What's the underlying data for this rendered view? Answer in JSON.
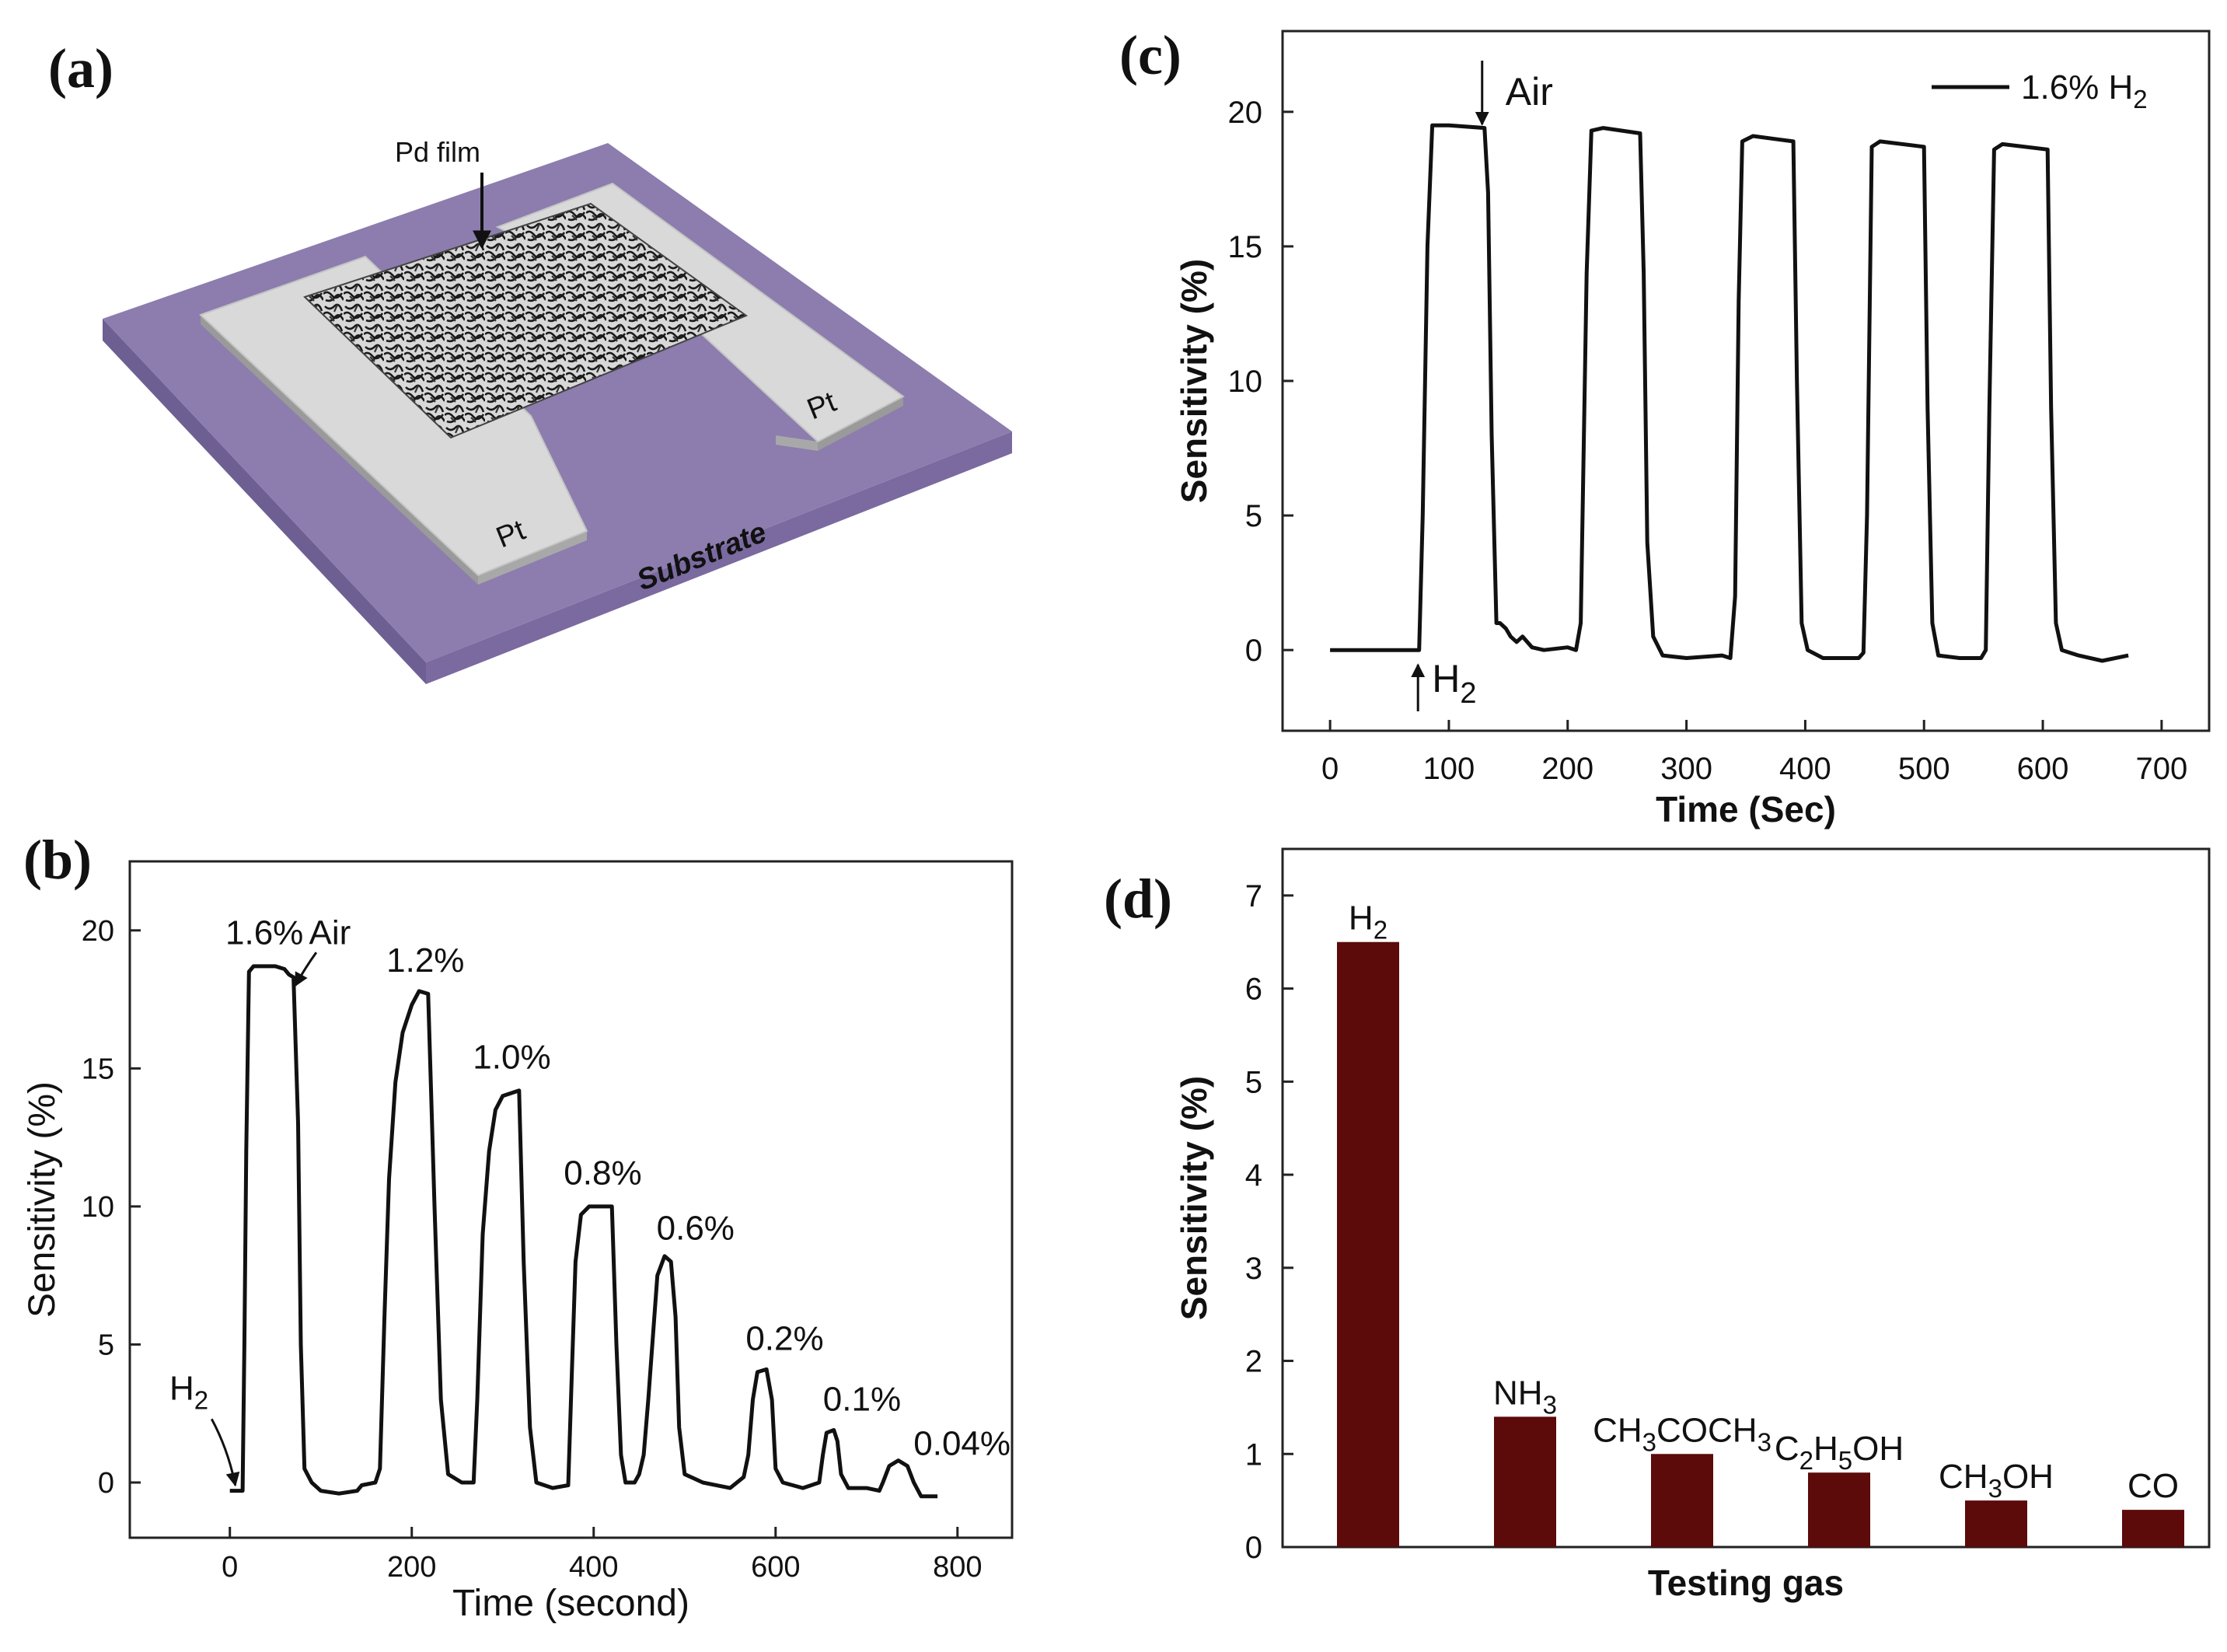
{
  "panels": {
    "a": {
      "label": "(a)",
      "film_label": "Pd film",
      "electrode_left": "Pt",
      "electrode_right": "Pt",
      "substrate_label": "Substrate",
      "colors": {
        "substrate": "#8C7DAE",
        "electrode": "#D9D9D9"
      }
    },
    "b": {
      "label": "(b)"
    },
    "c": {
      "label": "(c)"
    },
    "d": {
      "label": "(d)"
    }
  },
  "chart_data": [
    {
      "id": "b",
      "type": "line",
      "xlabel": "Time (second)",
      "ylabel": "Sensitivity (%)",
      "xlim": [
        -110,
        860
      ],
      "ylim": [
        -2,
        22.5
      ],
      "xticks": [
        0,
        200,
        400,
        600,
        800
      ],
      "yticks": [
        0,
        5,
        10,
        15,
        20
      ],
      "points": [
        [
          0,
          -0.3
        ],
        [
          12,
          -0.3
        ],
        [
          14,
          -0.3
        ],
        [
          16,
          5
        ],
        [
          18,
          12
        ],
        [
          21,
          18.5
        ],
        [
          26,
          18.7
        ],
        [
          50,
          18.7
        ],
        [
          60,
          18.6
        ],
        [
          65,
          18.4
        ],
        [
          70,
          18.3
        ],
        [
          75,
          13
        ],
        [
          78,
          5
        ],
        [
          82,
          0.5
        ],
        [
          90,
          0
        ],
        [
          100,
          -0.3
        ],
        [
          120,
          -0.4
        ],
        [
          140,
          -0.3
        ],
        [
          145,
          -0.1
        ],
        [
          160,
          0
        ],
        [
          165,
          0.5
        ],
        [
          170,
          6
        ],
        [
          175,
          11
        ],
        [
          182,
          14.5
        ],
        [
          190,
          16.3
        ],
        [
          200,
          17.3
        ],
        [
          208,
          17.8
        ],
        [
          218,
          17.7
        ],
        [
          225,
          10
        ],
        [
          232,
          3
        ],
        [
          240,
          0.3
        ],
        [
          255,
          0
        ],
        [
          268,
          0
        ],
        [
          272,
          3
        ],
        [
          278,
          9
        ],
        [
          285,
          12
        ],
        [
          292,
          13.5
        ],
        [
          300,
          14
        ],
        [
          318,
          14.2
        ],
        [
          323,
          8
        ],
        [
          330,
          2
        ],
        [
          337,
          0
        ],
        [
          355,
          -0.2
        ],
        [
          372,
          -0.1
        ],
        [
          376,
          4
        ],
        [
          380,
          8
        ],
        [
          386,
          9.7
        ],
        [
          395,
          10
        ],
        [
          420,
          10
        ],
        [
          425,
          5
        ],
        [
          430,
          1
        ],
        [
          435,
          0
        ],
        [
          445,
          0
        ],
        [
          450,
          0.3
        ],
        [
          455,
          1
        ],
        [
          460,
          3
        ],
        [
          470,
          7.5
        ],
        [
          478,
          8.2
        ],
        [
          485,
          8
        ],
        [
          490,
          6
        ],
        [
          494,
          2
        ],
        [
          500,
          0.3
        ],
        [
          520,
          0
        ],
        [
          550,
          -0.2
        ],
        [
          565,
          0.2
        ],
        [
          570,
          1
        ],
        [
          575,
          3
        ],
        [
          580,
          4
        ],
        [
          590,
          4.1
        ],
        [
          596,
          3
        ],
        [
          600,
          0.5
        ],
        [
          608,
          0
        ],
        [
          630,
          -0.2
        ],
        [
          648,
          0
        ],
        [
          652,
          1
        ],
        [
          656,
          1.8
        ],
        [
          664,
          1.9
        ],
        [
          668,
          1.5
        ],
        [
          672,
          0.3
        ],
        [
          680,
          -0.2
        ],
        [
          700,
          -0.2
        ],
        [
          714,
          -0.3
        ],
        [
          718,
          0
        ],
        [
          725,
          0.6
        ],
        [
          735,
          0.8
        ],
        [
          745,
          0.6
        ],
        [
          752,
          0
        ],
        [
          760,
          -0.5
        ],
        [
          778,
          -0.5
        ]
      ],
      "annotations": [
        {
          "text": "1.6%",
          "x": 38,
          "y": 19.5
        },
        {
          "text": "Air",
          "x": 110,
          "y": 19.5
        },
        {
          "text": "1.2%",
          "x": 215,
          "y": 18.5
        },
        {
          "text": "1.0%",
          "x": 310,
          "y": 15.0
        },
        {
          "text": "0.8%",
          "x": 410,
          "y": 10.8
        },
        {
          "text": "0.6%",
          "x": 512,
          "y": 8.8
        },
        {
          "text": "0.2%",
          "x": 610,
          "y": 4.8
        },
        {
          "text": "0.1%",
          "x": 695,
          "y": 2.6
        },
        {
          "text": "0.04%",
          "x": 805,
          "y": 1.0
        }
      ],
      "h2_marker": {
        "text": "H",
        "sub": "2"
      }
    },
    {
      "id": "c",
      "type": "line",
      "xlabel": "Time (Sec)",
      "ylabel": "Sensitivity (%)",
      "xlim": [
        -40,
        740
      ],
      "ylim": [
        -3,
        23
      ],
      "xticks": [
        0,
        100,
        200,
        300,
        400,
        500,
        600,
        700
      ],
      "yticks": [
        0,
        5,
        10,
        15,
        20
      ],
      "legend": {
        "text": "1.6% H",
        "sub": "2",
        "position": "top-right"
      },
      "points": [
        [
          0,
          0
        ],
        [
          70,
          0
        ],
        [
          75,
          0
        ],
        [
          78,
          5
        ],
        [
          82,
          15
        ],
        [
          86,
          19.5
        ],
        [
          100,
          19.5
        ],
        [
          130,
          19.4
        ],
        [
          133,
          17
        ],
        [
          136,
          8
        ],
        [
          140,
          1
        ],
        [
          143,
          1
        ],
        [
          148,
          0.8
        ],
        [
          152,
          0.5
        ],
        [
          157,
          0.3
        ],
        [
          162,
          0.5
        ],
        [
          170,
          0.1
        ],
        [
          180,
          0
        ],
        [
          200,
          0.1
        ],
        [
          207,
          0
        ],
        [
          211,
          1
        ],
        [
          216,
          14
        ],
        [
          220,
          19.3
        ],
        [
          230,
          19.4
        ],
        [
          261,
          19.2
        ],
        [
          264,
          14
        ],
        [
          267,
          4
        ],
        [
          272,
          0.5
        ],
        [
          280,
          -0.2
        ],
        [
          300,
          -0.3
        ],
        [
          330,
          -0.2
        ],
        [
          337,
          -0.3
        ],
        [
          341,
          2
        ],
        [
          344,
          13
        ],
        [
          347,
          18.9
        ],
        [
          356,
          19.1
        ],
        [
          390,
          18.9
        ],
        [
          393,
          10
        ],
        [
          397,
          1
        ],
        [
          402,
          0
        ],
        [
          415,
          -0.3
        ],
        [
          445,
          -0.3
        ],
        [
          449,
          -0.1
        ],
        [
          452,
          5
        ],
        [
          456,
          18.7
        ],
        [
          463,
          18.9
        ],
        [
          500,
          18.7
        ],
        [
          503,
          9
        ],
        [
          507,
          1
        ],
        [
          512,
          -0.2
        ],
        [
          530,
          -0.3
        ],
        [
          548,
          -0.3
        ],
        [
          552,
          0
        ],
        [
          555,
          9
        ],
        [
          559,
          18.6
        ],
        [
          566,
          18.8
        ],
        [
          604,
          18.6
        ],
        [
          607,
          9
        ],
        [
          611,
          1
        ],
        [
          616,
          0
        ],
        [
          630,
          -0.2
        ],
        [
          650,
          -0.4
        ],
        [
          672,
          -0.2
        ]
      ],
      "annotations": [
        {
          "type": "arrow_down",
          "text": "Air",
          "x": 128
        },
        {
          "type": "arrow_up",
          "text": "H",
          "sub": "2",
          "x": 74
        }
      ]
    },
    {
      "id": "d",
      "type": "bar",
      "xlabel": "Testing gas",
      "ylabel": "Sensitivity (%)",
      "ylim": [
        0,
        7.5
      ],
      "yticks": [
        0,
        1,
        2,
        3,
        4,
        5,
        6,
        7
      ],
      "bar_color": "#5C0A0A",
      "categories": [
        {
          "parts": [
            [
              "H",
              false
            ],
            [
              "2",
              true
            ]
          ]
        },
        {
          "parts": [
            [
              "NH",
              false
            ],
            [
              "3",
              true
            ]
          ]
        },
        {
          "parts": [
            [
              "CH",
              false
            ],
            [
              "3",
              true
            ],
            [
              "COCH",
              false
            ],
            [
              "3",
              true
            ]
          ]
        },
        {
          "parts": [
            [
              "C",
              false
            ],
            [
              "2",
              true
            ],
            [
              "H",
              false
            ],
            [
              "5",
              true
            ],
            [
              "OH",
              false
            ]
          ]
        },
        {
          "parts": [
            [
              "CH",
              false
            ],
            [
              "3",
              true
            ],
            [
              "OH",
              false
            ]
          ]
        },
        {
          "parts": [
            [
              "CO",
              false
            ]
          ]
        }
      ],
      "values": [
        6.5,
        1.4,
        1.0,
        0.8,
        0.5,
        0.4
      ]
    }
  ]
}
